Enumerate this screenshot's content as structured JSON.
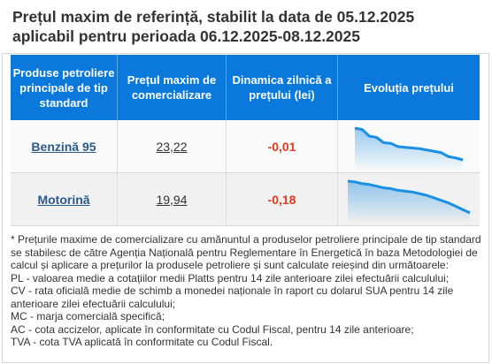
{
  "title": {
    "line1": "Prețul maxim de referință, stabilit la data de 05.12.2025",
    "line2": "aplicabil pentru perioada 06.12.2025-08.12.2025"
  },
  "table": {
    "headers": [
      "Produse petroliere principale de tip standard",
      "Prețul maxim de comercializare",
      "Dinamica zilnică a prețului (lei)",
      "Evoluția prețului"
    ],
    "rows": [
      {
        "product": "Benzină 95",
        "price": "23,22",
        "change": "-0,01",
        "trend": [
          100,
          98,
          88,
          86,
          78,
          77,
          72,
          71,
          70,
          69,
          67,
          65,
          63,
          57,
          55,
          52
        ]
      },
      {
        "product": "Motorină",
        "price": "19,94",
        "change": "-0,18",
        "trend": [
          100,
          99,
          97,
          96,
          94,
          92,
          91,
          89,
          88,
          87,
          85,
          83,
          80,
          77,
          74,
          70,
          66,
          62
        ]
      }
    ]
  },
  "colors": {
    "header_bg": "#0a79db",
    "accent_line": "#1a8fe3",
    "negative": "#e03a1f"
  },
  "notes": [
    "* Prețurile maxime de comercializare cu amănuntul a produselor petroliere principale de tip standard se stabilesc de către Agenția Națională pentru Reglementare în Energetică în baza Metodologiei de calcul și aplicare a prețurilor la produsele petroliere și sunt calculate reieșind din următoarele:",
    "PL - valoarea medie a cotațiilor medii Platts pentru 14 zile anterioare zilei efectuării calculului;",
    "CV - rata oficială medie de schimb a monedei naționale în raport cu dolarul SUA pentru 14 zile anterioare zilei efectuării calculului;",
    "MC - marja comercială specifică;",
    "AC - cota accizelor, aplicate în conformitate cu Codul Fiscal, pentru 14 zile anterioare;",
    "TVA - cota TVA aplicată în conformitate cu Codul Fiscal."
  ]
}
